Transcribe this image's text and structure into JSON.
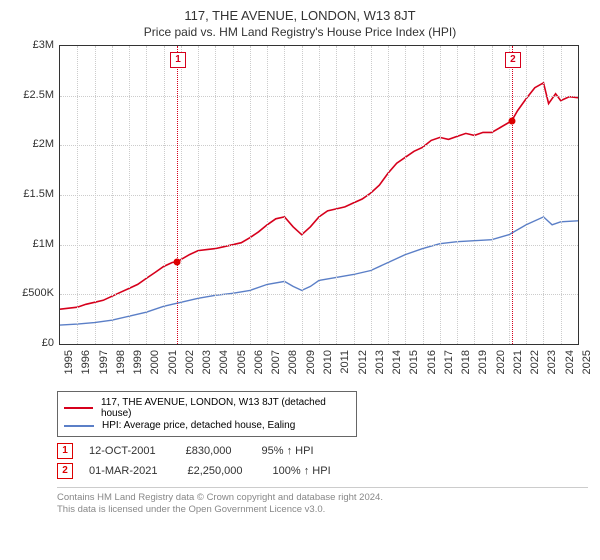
{
  "title": "117, THE AVENUE, LONDON, W13 8JT",
  "subtitle": "Price paid vs. HM Land Registry's House Price Index (HPI)",
  "chart": {
    "type": "line",
    "background_color": "#ffffff",
    "grid_color": "#cccccc",
    "axis_color": "#333333",
    "ylim": [
      0,
      3000000
    ],
    "ytick_step": 500000,
    "ytick_labels": [
      "£0",
      "£500K",
      "£1M",
      "£1.5M",
      "£2M",
      "£2.5M",
      "£3M"
    ],
    "xlim": [
      1995,
      2025
    ],
    "xtick_step": 1,
    "xtick_labels": [
      "1995",
      "1996",
      "1997",
      "1998",
      "1999",
      "2000",
      "2001",
      "2002",
      "2003",
      "2004",
      "2005",
      "2006",
      "2007",
      "2008",
      "2009",
      "2010",
      "2011",
      "2012",
      "2013",
      "2014",
      "2015",
      "2016",
      "2017",
      "2018",
      "2019",
      "2020",
      "2021",
      "2022",
      "2023",
      "2024",
      "2025"
    ],
    "label_fontsize": 11,
    "series": [
      {
        "id": "price_paid",
        "label": "117, THE AVENUE, LONDON, W13 8JT (detached house)",
        "color": "#d6001c",
        "line_width": 1.6,
        "data": [
          [
            1995,
            350000
          ],
          [
            1995.5,
            360000
          ],
          [
            1996,
            370000
          ],
          [
            1996.5,
            400000
          ],
          [
            1997,
            420000
          ],
          [
            1997.5,
            440000
          ],
          [
            1998,
            480000
          ],
          [
            1998.5,
            520000
          ],
          [
            1999,
            560000
          ],
          [
            1999.5,
            600000
          ],
          [
            2000,
            660000
          ],
          [
            2000.5,
            720000
          ],
          [
            2001,
            780000
          ],
          [
            2001.5,
            820000
          ],
          [
            2001.78,
            830000
          ],
          [
            2002,
            850000
          ],
          [
            2002.5,
            900000
          ],
          [
            2003,
            940000
          ],
          [
            2003.5,
            950000
          ],
          [
            2004,
            960000
          ],
          [
            2004.5,
            980000
          ],
          [
            2005,
            1000000
          ],
          [
            2005.5,
            1020000
          ],
          [
            2006,
            1070000
          ],
          [
            2006.5,
            1130000
          ],
          [
            2007,
            1200000
          ],
          [
            2007.5,
            1260000
          ],
          [
            2008,
            1280000
          ],
          [
            2008.5,
            1180000
          ],
          [
            2009,
            1100000
          ],
          [
            2009.5,
            1180000
          ],
          [
            2010,
            1280000
          ],
          [
            2010.5,
            1340000
          ],
          [
            2011,
            1360000
          ],
          [
            2011.5,
            1380000
          ],
          [
            2012,
            1420000
          ],
          [
            2012.5,
            1460000
          ],
          [
            2013,
            1520000
          ],
          [
            2013.5,
            1600000
          ],
          [
            2014,
            1720000
          ],
          [
            2014.5,
            1820000
          ],
          [
            2015,
            1880000
          ],
          [
            2015.5,
            1940000
          ],
          [
            2016,
            1980000
          ],
          [
            2016.5,
            2050000
          ],
          [
            2017,
            2080000
          ],
          [
            2017.5,
            2060000
          ],
          [
            2018,
            2090000
          ],
          [
            2018.5,
            2120000
          ],
          [
            2019,
            2100000
          ],
          [
            2019.5,
            2130000
          ],
          [
            2020,
            2130000
          ],
          [
            2020.5,
            2180000
          ],
          [
            2021,
            2230000
          ],
          [
            2021.17,
            2250000
          ],
          [
            2021.5,
            2350000
          ],
          [
            2022,
            2470000
          ],
          [
            2022.5,
            2580000
          ],
          [
            2023,
            2630000
          ],
          [
            2023.3,
            2420000
          ],
          [
            2023.7,
            2520000
          ],
          [
            2024,
            2450000
          ],
          [
            2024.5,
            2490000
          ],
          [
            2025,
            2480000
          ]
        ]
      },
      {
        "id": "hpi",
        "label": "HPI: Average price, detached house, Ealing",
        "color": "#5b7fc7",
        "line_width": 1.4,
        "data": [
          [
            1995,
            190000
          ],
          [
            1996,
            200000
          ],
          [
            1997,
            215000
          ],
          [
            1998,
            240000
          ],
          [
            1999,
            280000
          ],
          [
            2000,
            320000
          ],
          [
            2001,
            380000
          ],
          [
            2002,
            420000
          ],
          [
            2003,
            460000
          ],
          [
            2004,
            490000
          ],
          [
            2005,
            510000
          ],
          [
            2006,
            540000
          ],
          [
            2007,
            600000
          ],
          [
            2008,
            630000
          ],
          [
            2008.5,
            580000
          ],
          [
            2009,
            540000
          ],
          [
            2009.5,
            580000
          ],
          [
            2010,
            640000
          ],
          [
            2011,
            670000
          ],
          [
            2012,
            700000
          ],
          [
            2013,
            740000
          ],
          [
            2014,
            820000
          ],
          [
            2015,
            900000
          ],
          [
            2016,
            960000
          ],
          [
            2017,
            1010000
          ],
          [
            2018,
            1030000
          ],
          [
            2019,
            1040000
          ],
          [
            2020,
            1050000
          ],
          [
            2021,
            1100000
          ],
          [
            2022,
            1200000
          ],
          [
            2023,
            1280000
          ],
          [
            2023.5,
            1200000
          ],
          [
            2024,
            1230000
          ],
          [
            2025,
            1240000
          ]
        ]
      }
    ],
    "markers": [
      {
        "n": "1",
        "x": 2001.78,
        "y": 830000,
        "vline_color": "#d6001c",
        "box_border": "#d6001c",
        "box_text_color": "#d6001c"
      },
      {
        "n": "2",
        "x": 2021.17,
        "y": 2250000,
        "vline_color": "#d6001c",
        "box_border": "#d6001c",
        "box_text_color": "#d6001c"
      }
    ]
  },
  "legend": {
    "items": [
      {
        "color": "#d6001c",
        "label": "117, THE AVENUE, LONDON, W13 8JT (detached house)"
      },
      {
        "color": "#5b7fc7",
        "label": "HPI: Average price, detached house, Ealing"
      }
    ]
  },
  "transactions": [
    {
      "n": "1",
      "date": "12-OCT-2001",
      "price": "£830,000",
      "pct": "95%",
      "arrow": "↑",
      "vs": "HPI"
    },
    {
      "n": "2",
      "date": "01-MAR-2021",
      "price": "£2,250,000",
      "pct": "100%",
      "arrow": "↑",
      "vs": "HPI"
    }
  ],
  "footer": {
    "line1": "Contains HM Land Registry data © Crown copyright and database right 2024.",
    "line2": "This data is licensed under the Open Government Licence v3.0."
  }
}
